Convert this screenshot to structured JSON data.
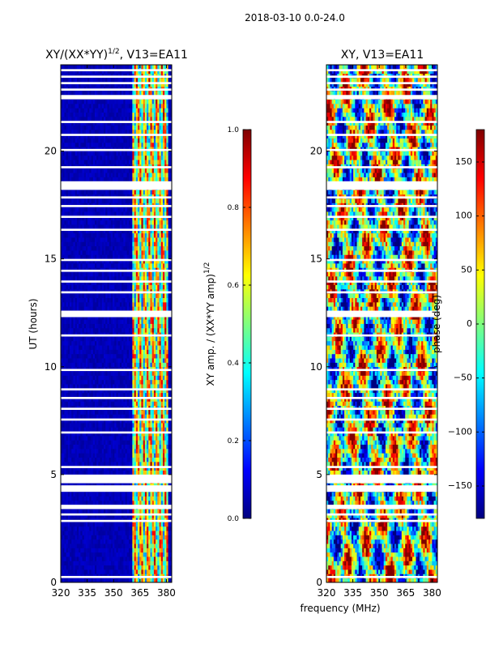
{
  "suptitle": "2018-03-10 0.0-24.0",
  "colors": {
    "jet": [
      "#00007f",
      "#0000ff",
      "#007fff",
      "#00ffff",
      "#7fff7f",
      "#ffff00",
      "#ff7f00",
      "#ff0000",
      "#7f0000"
    ],
    "frame": "#000000",
    "gap": "#ffffff"
  },
  "shared_xlabel": "frequency (MHz)",
  "chart_data": [
    {
      "type": "heatmap",
      "title_main": "XY/(XX*YY)",
      "title_exp": "1/2",
      "title_rest": ", V13=EA11",
      "ylabel": "UT (hours)",
      "xlim": [
        320,
        383
      ],
      "ylim": [
        0,
        24
      ],
      "xticks": [
        320,
        335,
        350,
        365,
        380
      ],
      "yticks": [
        0,
        5,
        10,
        15,
        20
      ],
      "colorbar": {
        "label_main": "XY amp. / (XX*YY amp)",
        "label_exp": "1/2",
        "range": [
          0.0,
          1.0
        ],
        "ticks": [
          "0.0",
          "0.2",
          "0.4",
          "0.6",
          "0.8",
          "1.0"
        ]
      }
    },
    {
      "type": "heatmap",
      "title": "XY, V13=EA11",
      "ylabel": "",
      "xlim": [
        320,
        383
      ],
      "ylim": [
        0,
        24
      ],
      "xticks": [
        320,
        335,
        350,
        365,
        380
      ],
      "yticks": [
        0,
        5,
        10,
        15,
        20
      ],
      "colorbar": {
        "label": "phase (deg)",
        "range": [
          -180,
          180
        ],
        "ticks": [
          "−150",
          "−100",
          "−50",
          "0",
          "50",
          "100",
          "150"
        ]
      }
    }
  ],
  "flagged_time_gaps_hours": [
    [
      0.2,
      0.3
    ],
    [
      2.8,
      2.9
    ],
    [
      3.1,
      3.2
    ],
    [
      3.4,
      3.6
    ],
    [
      4.2,
      4.5
    ],
    [
      4.6,
      5.0
    ],
    [
      5.3,
      5.4
    ],
    [
      6.9,
      7.0
    ],
    [
      7.5,
      7.6
    ],
    [
      8.0,
      8.1
    ],
    [
      8.5,
      8.6
    ],
    [
      8.9,
      9.0
    ],
    [
      9.8,
      9.9
    ],
    [
      11.4,
      11.5
    ],
    [
      12.3,
      12.6
    ],
    [
      13.4,
      13.5
    ],
    [
      13.9,
      14.0
    ],
    [
      14.4,
      14.5
    ],
    [
      14.9,
      15.0
    ],
    [
      16.3,
      16.4
    ],
    [
      16.9,
      17.0
    ],
    [
      17.4,
      17.5
    ],
    [
      17.8,
      17.9
    ],
    [
      18.2,
      18.6
    ],
    [
      19.2,
      19.3
    ],
    [
      20.0,
      20.1
    ],
    [
      20.7,
      20.8
    ],
    [
      21.3,
      21.4
    ],
    [
      22.4,
      22.6
    ],
    [
      22.8,
      22.9
    ],
    [
      23.1,
      23.2
    ],
    [
      23.4,
      23.5
    ],
    [
      23.7,
      23.8
    ]
  ]
}
